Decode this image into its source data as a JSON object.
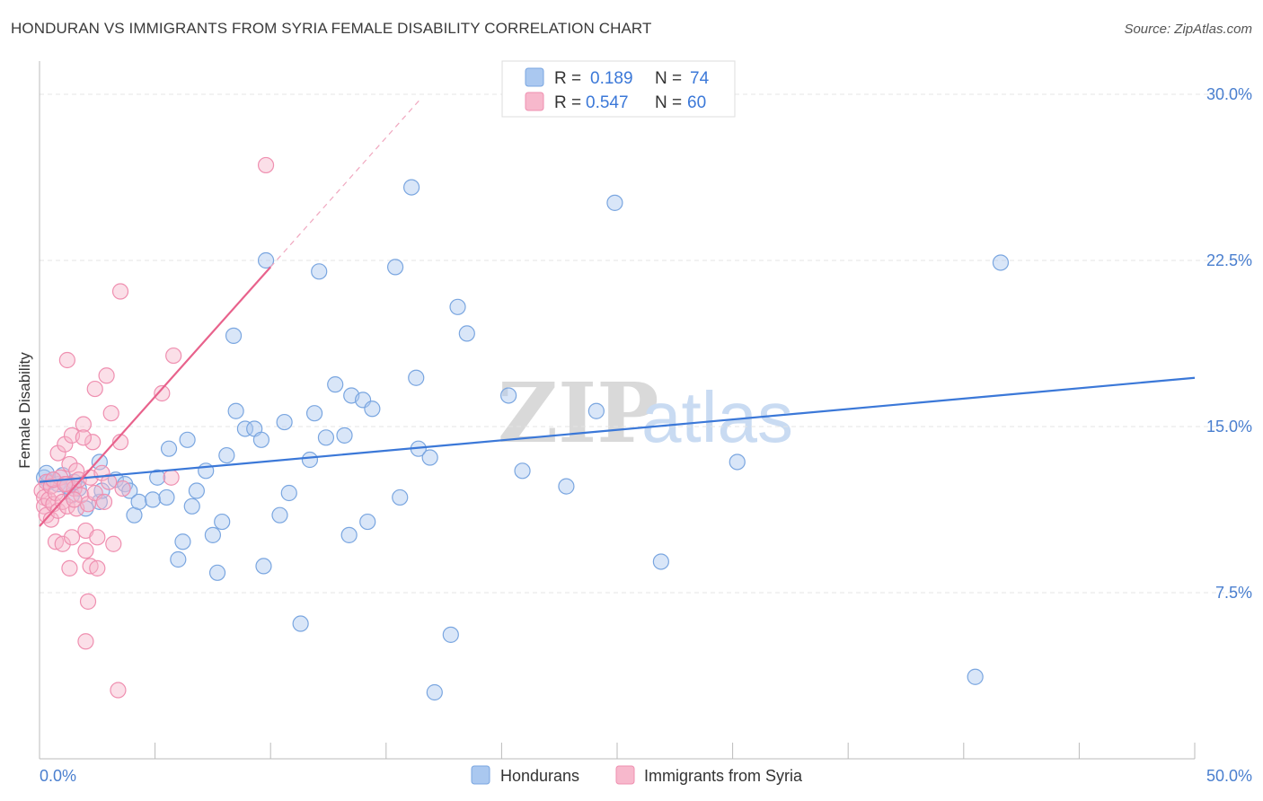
{
  "header": {
    "title": "HONDURAN VS IMMIGRANTS FROM SYRIA FEMALE DISABILITY CORRELATION CHART",
    "source": "Source: ZipAtlas.com"
  },
  "watermark": {
    "zip": "ZIP",
    "atlas": "atlas"
  },
  "legend_top": {
    "rows": [
      {
        "r_label": "R =",
        "r_value": "0.189",
        "n_label": "N =",
        "n_value": "74",
        "color": "#aac8f0"
      },
      {
        "r_label": "R =",
        "r_value": "0.547",
        "n_label": "N =",
        "n_value": "60",
        "color": "#f7b8cc"
      }
    ]
  },
  "legend_bottom": {
    "items": [
      {
        "label": "Hondurans",
        "color": "#aac8f0"
      },
      {
        "label": "Immigrants from Syria",
        "color": "#f7b8cc"
      }
    ]
  },
  "chart_data": {
    "type": "scatter",
    "title": "HONDURAN VS IMMIGRANTS FROM SYRIA FEMALE DISABILITY CORRELATION CHART",
    "xlabel": "",
    "ylabel": "Female Disability",
    "xlim": [
      0,
      50
    ],
    "ylim": [
      0,
      31.5
    ],
    "x_tick_labels": [
      "0.0%",
      "50.0%"
    ],
    "y_ticks": [
      7.5,
      15.0,
      22.5,
      30.0
    ],
    "y_tick_labels": [
      "7.5%",
      "15.0%",
      "22.5%",
      "30.0%"
    ],
    "grid": true,
    "colors": {
      "blue": "#3b78d8",
      "blue_fill": "#aac8f0",
      "pink": "#e8628c",
      "pink_fill": "#f7b8cc"
    },
    "series": [
      {
        "name": "Hondurans",
        "r": 0.189,
        "n": 74,
        "trend": {
          "x0": 0.0,
          "y0": 12.5,
          "x1": 50.0,
          "y1": 17.2
        },
        "points": [
          [
            0.2,
            12.7
          ],
          [
            0.4,
            12.5
          ],
          [
            0.6,
            12.6
          ],
          [
            0.8,
            12.4
          ],
          [
            1.0,
            12.8
          ],
          [
            1.2,
            12.3
          ],
          [
            1.4,
            11.9
          ],
          [
            1.7,
            12.2
          ],
          [
            2.0,
            11.3
          ],
          [
            2.6,
            11.6
          ],
          [
            2.7,
            12.1
          ],
          [
            2.6,
            13.4
          ],
          [
            3.3,
            12.6
          ],
          [
            3.7,
            12.4
          ],
          [
            3.9,
            12.1
          ],
          [
            4.1,
            11.0
          ],
          [
            4.3,
            11.6
          ],
          [
            4.9,
            11.7
          ],
          [
            5.1,
            12.7
          ],
          [
            5.5,
            11.8
          ],
          [
            5.6,
            14.0
          ],
          [
            6.0,
            9.0
          ],
          [
            6.2,
            9.8
          ],
          [
            6.4,
            14.4
          ],
          [
            6.6,
            11.4
          ],
          [
            6.8,
            12.1
          ],
          [
            7.2,
            13.0
          ],
          [
            7.5,
            10.1
          ],
          [
            7.7,
            8.4
          ],
          [
            7.9,
            10.7
          ],
          [
            8.1,
            13.7
          ],
          [
            8.4,
            19.1
          ],
          [
            8.5,
            15.7
          ],
          [
            8.9,
            14.9
          ],
          [
            9.3,
            14.9
          ],
          [
            9.6,
            14.4
          ],
          [
            9.7,
            8.7
          ],
          [
            9.8,
            22.5
          ],
          [
            10.4,
            11.0
          ],
          [
            10.6,
            15.2
          ],
          [
            10.8,
            12.0
          ],
          [
            11.3,
            6.1
          ],
          [
            11.7,
            13.5
          ],
          [
            11.9,
            15.6
          ],
          [
            12.1,
            22.0
          ],
          [
            12.4,
            14.5
          ],
          [
            12.8,
            16.9
          ],
          [
            13.2,
            14.6
          ],
          [
            13.4,
            10.1
          ],
          [
            13.5,
            16.4
          ],
          [
            14.0,
            16.2
          ],
          [
            14.2,
            10.7
          ],
          [
            14.4,
            15.8
          ],
          [
            15.4,
            22.2
          ],
          [
            15.6,
            11.8
          ],
          [
            16.1,
            25.8
          ],
          [
            16.3,
            17.2
          ],
          [
            16.4,
            14.0
          ],
          [
            16.9,
            13.6
          ],
          [
            17.1,
            3.0
          ],
          [
            17.8,
            5.6
          ],
          [
            18.1,
            20.4
          ],
          [
            18.5,
            19.2
          ],
          [
            20.3,
            16.4
          ],
          [
            20.9,
            13.0
          ],
          [
            22.8,
            12.3
          ],
          [
            24.1,
            15.7
          ],
          [
            24.9,
            25.1
          ],
          [
            26.9,
            8.9
          ],
          [
            30.2,
            13.4
          ],
          [
            40.5,
            3.7
          ],
          [
            41.6,
            22.4
          ],
          [
            0.3,
            12.9
          ],
          [
            1.5,
            12.5
          ]
        ]
      },
      {
        "name": "Immigrants from Syria",
        "r": 0.547,
        "n": 60,
        "trend": {
          "x0": 0.0,
          "y0": 10.5,
          "x1": 10.0,
          "y1": 22.2
        },
        "trend_dashed": {
          "x0": 10.0,
          "y0": 22.2,
          "x1": 16.5,
          "y1": 29.8
        },
        "points": [
          [
            0.1,
            12.1
          ],
          [
            0.2,
            11.8
          ],
          [
            0.2,
            11.4
          ],
          [
            0.3,
            12.5
          ],
          [
            0.3,
            11.0
          ],
          [
            0.4,
            11.7
          ],
          [
            0.5,
            12.3
          ],
          [
            0.5,
            10.8
          ],
          [
            0.6,
            11.5
          ],
          [
            0.7,
            12.0
          ],
          [
            0.7,
            9.8
          ],
          [
            0.8,
            13.8
          ],
          [
            0.8,
            11.2
          ],
          [
            0.9,
            12.7
          ],
          [
            1.0,
            11.6
          ],
          [
            1.0,
            9.7
          ],
          [
            1.1,
            14.2
          ],
          [
            1.2,
            12.4
          ],
          [
            1.2,
            11.4
          ],
          [
            1.3,
            13.3
          ],
          [
            1.3,
            8.6
          ],
          [
            1.4,
            10.0
          ],
          [
            1.4,
            14.6
          ],
          [
            1.5,
            12.2
          ],
          [
            1.6,
            13.0
          ],
          [
            1.6,
            11.3
          ],
          [
            1.7,
            12.6
          ],
          [
            1.8,
            11.9
          ],
          [
            1.9,
            15.1
          ],
          [
            2.0,
            10.3
          ],
          [
            2.0,
            9.4
          ],
          [
            2.1,
            11.5
          ],
          [
            2.1,
            7.1
          ],
          [
            2.2,
            12.7
          ],
          [
            2.2,
            8.7
          ],
          [
            2.3,
            14.3
          ],
          [
            2.4,
            12.0
          ],
          [
            2.4,
            16.7
          ],
          [
            2.5,
            10.0
          ],
          [
            2.5,
            8.6
          ],
          [
            2.7,
            12.9
          ],
          [
            2.8,
            11.6
          ],
          [
            2.9,
            17.3
          ],
          [
            3.0,
            12.5
          ],
          [
            3.1,
            15.6
          ],
          [
            3.2,
            9.7
          ],
          [
            3.4,
            3.1
          ],
          [
            3.5,
            14.3
          ],
          [
            3.5,
            21.1
          ],
          [
            3.6,
            12.2
          ],
          [
            5.3,
            16.5
          ],
          [
            5.7,
            12.7
          ],
          [
            5.8,
            18.2
          ],
          [
            9.8,
            26.8
          ],
          [
            1.2,
            18.0
          ],
          [
            2.0,
            5.3
          ],
          [
            1.9,
            14.5
          ],
          [
            1.5,
            11.7
          ],
          [
            0.6,
            12.6
          ],
          [
            1.1,
            12.4
          ]
        ]
      }
    ]
  }
}
